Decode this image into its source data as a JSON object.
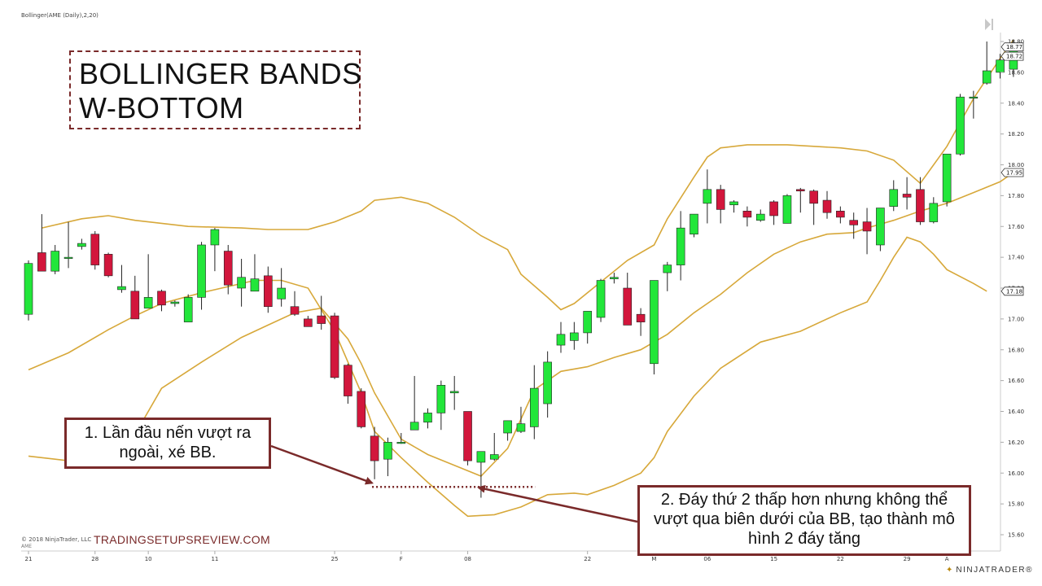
{
  "indicator_label": "Bollinger(AME (Daily),2,20)",
  "title": {
    "line1": "BOLLINGER BANDS",
    "line2": "W-BOTTOM"
  },
  "annotations": [
    {
      "text": "1. Lần đầu nến vượt ra ngoài, xé BB."
    },
    {
      "text": "2. Đáy thứ 2 thấp hơn nhưng không thể vượt qua biên dưới của BB, tạo thành mô hình 2 đáy tăng"
    }
  ],
  "copyright": "© 2018 NinjaTrader, LLC",
  "watermark": "TRADINGSETUPSREVIEW.COM",
  "instrument": "AME",
  "brand": "NINJATRADER®",
  "colors": {
    "up": "#22e63a",
    "down": "#d2163c",
    "band": "#d7a83a",
    "annotation": "#7a2a2a",
    "axis_text": "#333333",
    "price_tag": "#333333"
  },
  "chart_data": {
    "type": "candlestick",
    "ylim": [
      15.55,
      18.83
    ],
    "yticks": [
      "18.80",
      "18.60",
      "18.40",
      "18.20",
      "18.00",
      "17.80",
      "17.60",
      "17.40",
      "17.20",
      "17.00",
      "16.80",
      "16.60",
      "16.40",
      "16.20",
      "16.00",
      "15.80",
      "15.60"
    ],
    "xticks": [
      {
        "label": "21",
        "bar": 0
      },
      {
        "label": "28",
        "bar": 5
      },
      {
        "label": "10",
        "bar": 9
      },
      {
        "label": "11",
        "bar": 14
      },
      {
        "label": "25",
        "bar": 23
      },
      {
        "label": "F",
        "bar": 28
      },
      {
        "label": "08",
        "bar": 33
      },
      {
        "label": "22",
        "bar": 42
      },
      {
        "label": "M",
        "bar": 47
      },
      {
        "label": "06",
        "bar": 51
      },
      {
        "label": "15",
        "bar": 56
      },
      {
        "label": "22",
        "bar": 61
      },
      {
        "label": "29",
        "bar": 66
      },
      {
        "label": "A",
        "bar": 69
      }
    ],
    "price_tags": [
      {
        "value": 18.77,
        "label": "18.77",
        "style": "outline"
      },
      {
        "value": 18.72,
        "label": "18.72",
        "style": "outline"
      },
      {
        "value": 17.95,
        "label": "17.95",
        "style": "outline"
      },
      {
        "value": 17.18,
        "label": "17.18",
        "style": "outline"
      }
    ],
    "candles": [
      {
        "o": 17.03,
        "h": 17.38,
        "l": 16.99,
        "c": 17.36
      },
      {
        "o": 17.43,
        "h": 17.68,
        "l": 17.32,
        "c": 17.31
      },
      {
        "o": 17.31,
        "h": 17.48,
        "l": 17.29,
        "c": 17.44
      },
      {
        "o": 17.4,
        "h": 17.63,
        "l": 17.33,
        "c": 17.4
      },
      {
        "o": 17.47,
        "h": 17.52,
        "l": 17.45,
        "c": 17.49
      },
      {
        "o": 17.55,
        "h": 17.57,
        "l": 17.32,
        "c": 17.35
      },
      {
        "o": 17.42,
        "h": 17.43,
        "l": 17.27,
        "c": 17.28
      },
      {
        "o": 17.19,
        "h": 17.35,
        "l": 17.17,
        "c": 17.21
      },
      {
        "o": 17.18,
        "h": 17.28,
        "l": 17.0,
        "c": 17.0
      },
      {
        "o": 17.07,
        "h": 17.42,
        "l": 17.07,
        "c": 17.14
      },
      {
        "o": 17.18,
        "h": 17.19,
        "l": 17.05,
        "c": 17.09
      },
      {
        "o": 17.1,
        "h": 17.12,
        "l": 17.08,
        "c": 17.11
      },
      {
        "o": 16.98,
        "h": 17.16,
        "l": 16.98,
        "c": 17.14
      },
      {
        "o": 17.14,
        "h": 17.5,
        "l": 17.06,
        "c": 17.48
      },
      {
        "o": 17.48,
        "h": 17.59,
        "l": 17.31,
        "c": 17.58
      },
      {
        "o": 17.44,
        "h": 17.48,
        "l": 17.16,
        "c": 17.22
      },
      {
        "o": 17.2,
        "h": 17.39,
        "l": 17.08,
        "c": 17.27
      },
      {
        "o": 17.18,
        "h": 17.42,
        "l": 17.18,
        "c": 17.26
      },
      {
        "o": 17.28,
        "h": 17.34,
        "l": 17.04,
        "c": 17.08
      },
      {
        "o": 17.13,
        "h": 17.33,
        "l": 17.08,
        "c": 17.2
      },
      {
        "o": 17.08,
        "h": 17.18,
        "l": 17.02,
        "c": 17.03
      },
      {
        "o": 17.0,
        "h": 17.02,
        "l": 16.95,
        "c": 16.95
      },
      {
        "o": 17.02,
        "h": 17.15,
        "l": 16.93,
        "c": 16.97
      },
      {
        "o": 17.02,
        "h": 17.04,
        "l": 16.61,
        "c": 16.62
      },
      {
        "o": 16.7,
        "h": 16.71,
        "l": 16.45,
        "c": 16.5
      },
      {
        "o": 16.53,
        "h": 16.55,
        "l": 16.29,
        "c": 16.3
      },
      {
        "o": 16.24,
        "h": 16.3,
        "l": 15.96,
        "c": 16.08
      },
      {
        "o": 16.09,
        "h": 16.23,
        "l": 15.98,
        "c": 16.2
      },
      {
        "o": 16.2,
        "h": 16.26,
        "l": 16.19,
        "c": 16.2
      },
      {
        "o": 16.28,
        "h": 16.63,
        "l": 16.28,
        "c": 16.33
      },
      {
        "o": 16.33,
        "h": 16.42,
        "l": 16.29,
        "c": 16.39
      },
      {
        "o": 16.39,
        "h": 16.6,
        "l": 16.28,
        "c": 16.57
      },
      {
        "o": 16.52,
        "h": 16.63,
        "l": 16.41,
        "c": 16.53
      },
      {
        "o": 16.4,
        "h": 16.4,
        "l": 16.05,
        "c": 16.08
      },
      {
        "o": 16.07,
        "h": 16.14,
        "l": 15.84,
        "c": 16.14
      },
      {
        "o": 16.09,
        "h": 16.26,
        "l": 16.08,
        "c": 16.12
      },
      {
        "o": 16.26,
        "h": 16.34,
        "l": 16.21,
        "c": 16.34
      },
      {
        "o": 16.27,
        "h": 16.43,
        "l": 16.26,
        "c": 16.32
      },
      {
        "o": 16.3,
        "h": 16.7,
        "l": 16.22,
        "c": 16.55
      },
      {
        "o": 16.45,
        "h": 16.79,
        "l": 16.36,
        "c": 16.72
      },
      {
        "o": 16.83,
        "h": 16.98,
        "l": 16.78,
        "c": 16.9
      },
      {
        "o": 16.86,
        "h": 16.98,
        "l": 16.8,
        "c": 16.91
      },
      {
        "o": 16.91,
        "h": 17.05,
        "l": 16.84,
        "c": 17.05
      },
      {
        "o": 17.01,
        "h": 17.26,
        "l": 16.98,
        "c": 17.25
      },
      {
        "o": 17.26,
        "h": 17.3,
        "l": 17.23,
        "c": 17.27
      },
      {
        "o": 17.2,
        "h": 17.3,
        "l": 16.96,
        "c": 16.96
      },
      {
        "o": 17.03,
        "h": 17.07,
        "l": 16.89,
        "c": 16.98
      },
      {
        "o": 16.71,
        "h": 17.25,
        "l": 16.64,
        "c": 17.25
      },
      {
        "o": 17.3,
        "h": 17.37,
        "l": 17.18,
        "c": 17.35
      },
      {
        "o": 17.35,
        "h": 17.7,
        "l": 17.25,
        "c": 17.59
      },
      {
        "o": 17.55,
        "h": 17.68,
        "l": 17.53,
        "c": 17.68
      },
      {
        "o": 17.75,
        "h": 17.97,
        "l": 17.62,
        "c": 17.84
      },
      {
        "o": 17.84,
        "h": 17.87,
        "l": 17.62,
        "c": 17.71
      },
      {
        "o": 17.74,
        "h": 17.77,
        "l": 17.69,
        "c": 17.76
      },
      {
        "o": 17.7,
        "h": 17.73,
        "l": 17.6,
        "c": 17.66
      },
      {
        "o": 17.64,
        "h": 17.71,
        "l": 17.63,
        "c": 17.68
      },
      {
        "o": 17.76,
        "h": 17.77,
        "l": 17.61,
        "c": 17.67
      },
      {
        "o": 17.62,
        "h": 17.81,
        "l": 17.62,
        "c": 17.8
      },
      {
        "o": 17.84,
        "h": 17.85,
        "l": 17.69,
        "c": 17.83
      },
      {
        "o": 17.83,
        "h": 17.84,
        "l": 17.61,
        "c": 17.75
      },
      {
        "o": 17.77,
        "h": 17.83,
        "l": 17.65,
        "c": 17.69
      },
      {
        "o": 17.7,
        "h": 17.73,
        "l": 17.62,
        "c": 17.66
      },
      {
        "o": 17.64,
        "h": 17.69,
        "l": 17.52,
        "c": 17.61
      },
      {
        "o": 17.63,
        "h": 17.72,
        "l": 17.42,
        "c": 17.57
      },
      {
        "o": 17.48,
        "h": 17.7,
        "l": 17.44,
        "c": 17.72
      },
      {
        "o": 17.73,
        "h": 17.9,
        "l": 17.7,
        "c": 17.84
      },
      {
        "o": 17.81,
        "h": 17.92,
        "l": 17.71,
        "c": 17.79
      },
      {
        "o": 17.84,
        "h": 17.92,
        "l": 17.61,
        "c": 17.63
      },
      {
        "o": 17.63,
        "h": 17.79,
        "l": 17.62,
        "c": 17.75
      },
      {
        "o": 17.76,
        "h": 18.07,
        "l": 17.73,
        "c": 18.07
      },
      {
        "o": 18.07,
        "h": 18.46,
        "l": 18.06,
        "c": 18.44
      },
      {
        "o": 18.44,
        "h": 18.48,
        "l": 18.3,
        "c": 18.44
      },
      {
        "o": 18.53,
        "h": 18.8,
        "l": 18.52,
        "c": 18.61
      },
      {
        "o": 18.6,
        "h": 18.72,
        "l": 18.56,
        "c": 18.68
      },
      {
        "o": 18.62,
        "h": 18.81,
        "l": 18.57,
        "c": 18.77
      }
    ],
    "bands": {
      "upper": [
        {
          "bar": 1,
          "v": 17.59
        },
        {
          "bar": 4,
          "v": 17.65
        },
        {
          "bar": 6,
          "v": 17.67
        },
        {
          "bar": 8,
          "v": 17.64
        },
        {
          "bar": 12,
          "v": 17.6
        },
        {
          "bar": 16,
          "v": 17.59
        },
        {
          "bar": 18,
          "v": 17.58
        },
        {
          "bar": 21,
          "v": 17.58
        },
        {
          "bar": 23,
          "v": 17.63
        },
        {
          "bar": 25,
          "v": 17.7
        },
        {
          "bar": 26,
          "v": 17.77
        },
        {
          "bar": 28,
          "v": 17.79
        },
        {
          "bar": 30,
          "v": 17.75
        },
        {
          "bar": 32,
          "v": 17.66
        },
        {
          "bar": 34,
          "v": 17.54
        },
        {
          "bar": 36,
          "v": 17.45
        },
        {
          "bar": 37,
          "v": 17.29
        },
        {
          "bar": 39,
          "v": 17.14
        },
        {
          "bar": 40,
          "v": 17.06
        },
        {
          "bar": 41,
          "v": 17.1
        },
        {
          "bar": 43,
          "v": 17.24
        },
        {
          "bar": 45,
          "v": 17.38
        },
        {
          "bar": 47,
          "v": 17.48
        },
        {
          "bar": 48,
          "v": 17.65
        },
        {
          "bar": 50,
          "v": 17.92
        },
        {
          "bar": 51,
          "v": 18.05
        },
        {
          "bar": 52,
          "v": 18.11
        },
        {
          "bar": 54,
          "v": 18.13
        },
        {
          "bar": 57,
          "v": 18.13
        },
        {
          "bar": 59,
          "v": 18.12
        },
        {
          "bar": 61,
          "v": 18.11
        },
        {
          "bar": 63,
          "v": 18.09
        },
        {
          "bar": 65,
          "v": 18.03
        },
        {
          "bar": 67,
          "v": 17.88
        },
        {
          "bar": 69,
          "v": 18.12
        },
        {
          "bar": 71,
          "v": 18.43
        },
        {
          "bar": 73,
          "v": 18.69
        },
        {
          "bar": 74,
          "v": 18.81
        }
      ],
      "middle": [
        {
          "bar": 0,
          "v": 16.67
        },
        {
          "bar": 3,
          "v": 16.78
        },
        {
          "bar": 6,
          "v": 16.93
        },
        {
          "bar": 8,
          "v": 17.02
        },
        {
          "bar": 10,
          "v": 17.1
        },
        {
          "bar": 13,
          "v": 17.17
        },
        {
          "bar": 15,
          "v": 17.21
        },
        {
          "bar": 17,
          "v": 17.25
        },
        {
          "bar": 19,
          "v": 17.25
        },
        {
          "bar": 21,
          "v": 17.2
        },
        {
          "bar": 23,
          "v": 16.92
        },
        {
          "bar": 25,
          "v": 16.52
        },
        {
          "bar": 26,
          "v": 16.27
        },
        {
          "bar": 28,
          "v": 16.1
        },
        {
          "bar": 30,
          "v": 15.94
        },
        {
          "bar": 32,
          "v": 15.79
        },
        {
          "bar": 33,
          "v": 15.72
        },
        {
          "bar": 35,
          "v": 15.73
        },
        {
          "bar": 37,
          "v": 15.78
        },
        {
          "bar": 39,
          "v": 15.86
        },
        {
          "bar": 41,
          "v": 15.87
        },
        {
          "bar": 42,
          "v": 15.86
        },
        {
          "bar": 44,
          "v": 15.92
        },
        {
          "bar": 46,
          "v": 16.0
        },
        {
          "bar": 47,
          "v": 16.1
        },
        {
          "bar": 48,
          "v": 16.27
        },
        {
          "bar": 50,
          "v": 16.5
        },
        {
          "bar": 52,
          "v": 16.68
        },
        {
          "bar": 55,
          "v": 16.85
        },
        {
          "bar": 58,
          "v": 16.92
        },
        {
          "bar": 61,
          "v": 17.04
        },
        {
          "bar": 63,
          "v": 17.11
        },
        {
          "bar": 64,
          "v": 17.25
        },
        {
          "bar": 65,
          "v": 17.4
        },
        {
          "bar": 66,
          "v": 17.53
        },
        {
          "bar": 67,
          "v": 17.5
        },
        {
          "bar": 68,
          "v": 17.42
        },
        {
          "bar": 69,
          "v": 17.32
        },
        {
          "bar": 71,
          "v": 17.23
        },
        {
          "bar": 72,
          "v": 17.18
        }
      ],
      "lower": [
        {
          "bar": 0,
          "v": 16.11
        },
        {
          "bar": 2,
          "v": 16.09
        },
        {
          "bar": 4,
          "v": 16.07
        },
        {
          "bar": 6,
          "v": 16.13
        },
        {
          "bar": 8,
          "v": 16.25
        },
        {
          "bar": 10,
          "v": 16.55
        },
        {
          "bar": 13,
          "v": 16.72
        },
        {
          "bar": 16,
          "v": 16.88
        },
        {
          "bar": 18,
          "v": 16.96
        },
        {
          "bar": 20,
          "v": 17.04
        },
        {
          "bar": 22,
          "v": 17.07
        },
        {
          "bar": 24,
          "v": 16.87
        },
        {
          "bar": 25,
          "v": 16.71
        },
        {
          "bar": 26,
          "v": 16.52
        },
        {
          "bar": 28,
          "v": 16.22
        },
        {
          "bar": 30,
          "v": 16.12
        },
        {
          "bar": 32,
          "v": 16.05
        },
        {
          "bar": 34,
          "v": 15.98
        },
        {
          "bar": 36,
          "v": 16.16
        },
        {
          "bar": 38,
          "v": 16.54
        },
        {
          "bar": 40,
          "v": 16.66
        },
        {
          "bar": 42,
          "v": 16.69
        },
        {
          "bar": 44,
          "v": 16.75
        },
        {
          "bar": 46,
          "v": 16.8
        },
        {
          "bar": 48,
          "v": 16.9
        },
        {
          "bar": 50,
          "v": 17.04
        },
        {
          "bar": 52,
          "v": 17.16
        },
        {
          "bar": 54,
          "v": 17.3
        },
        {
          "bar": 56,
          "v": 17.42
        },
        {
          "bar": 58,
          "v": 17.5
        },
        {
          "bar": 60,
          "v": 17.55
        },
        {
          "bar": 62,
          "v": 17.56
        },
        {
          "bar": 63,
          "v": 17.59
        },
        {
          "bar": 65,
          "v": 17.64
        },
        {
          "bar": 67,
          "v": 17.7
        },
        {
          "bar": 69,
          "v": 17.75
        },
        {
          "bar": 71,
          "v": 17.82
        },
        {
          "bar": 73,
          "v": 17.89
        },
        {
          "bar": 74,
          "v": 17.95
        }
      ]
    },
    "support_level": {
      "value": 15.91,
      "from_bar": 26,
      "to_bar": 38
    },
    "arrows": [
      {
        "note": 1,
        "target_bar": 26,
        "target_value": 15.92
      },
      {
        "note": 2,
        "target_bar": 34,
        "target_value": 15.89
      }
    ]
  }
}
